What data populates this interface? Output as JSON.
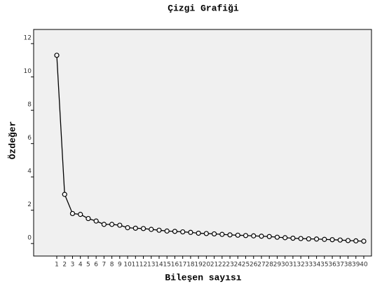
{
  "chart_data": {
    "type": "line",
    "title": "Çizgi Grafiği",
    "xlabel": "Bileşen sayısı",
    "ylabel": "Özdeğer",
    "categories": [
      1,
      2,
      3,
      4,
      5,
      6,
      7,
      8,
      9,
      10,
      11,
      12,
      13,
      14,
      15,
      16,
      17,
      18,
      19,
      20,
      21,
      22,
      23,
      24,
      25,
      26,
      27,
      28,
      29,
      30,
      31,
      32,
      33,
      34,
      35,
      36,
      37,
      38,
      39,
      40
    ],
    "values": [
      11.3,
      2.95,
      1.8,
      1.75,
      1.5,
      1.35,
      1.15,
      1.15,
      1.1,
      0.95,
      0.92,
      0.9,
      0.85,
      0.8,
      0.75,
      0.73,
      0.7,
      0.67,
      0.62,
      0.6,
      0.58,
      0.55,
      0.52,
      0.5,
      0.48,
      0.46,
      0.44,
      0.42,
      0.38,
      0.35,
      0.32,
      0.3,
      0.28,
      0.27,
      0.25,
      0.23,
      0.21,
      0.18,
      0.16,
      0.14
    ],
    "color": "#000000",
    "ylim": [
      -0.75,
      12.85
    ],
    "yticks": [
      0,
      2,
      4,
      6,
      8,
      10,
      12
    ],
    "grid": false
  }
}
